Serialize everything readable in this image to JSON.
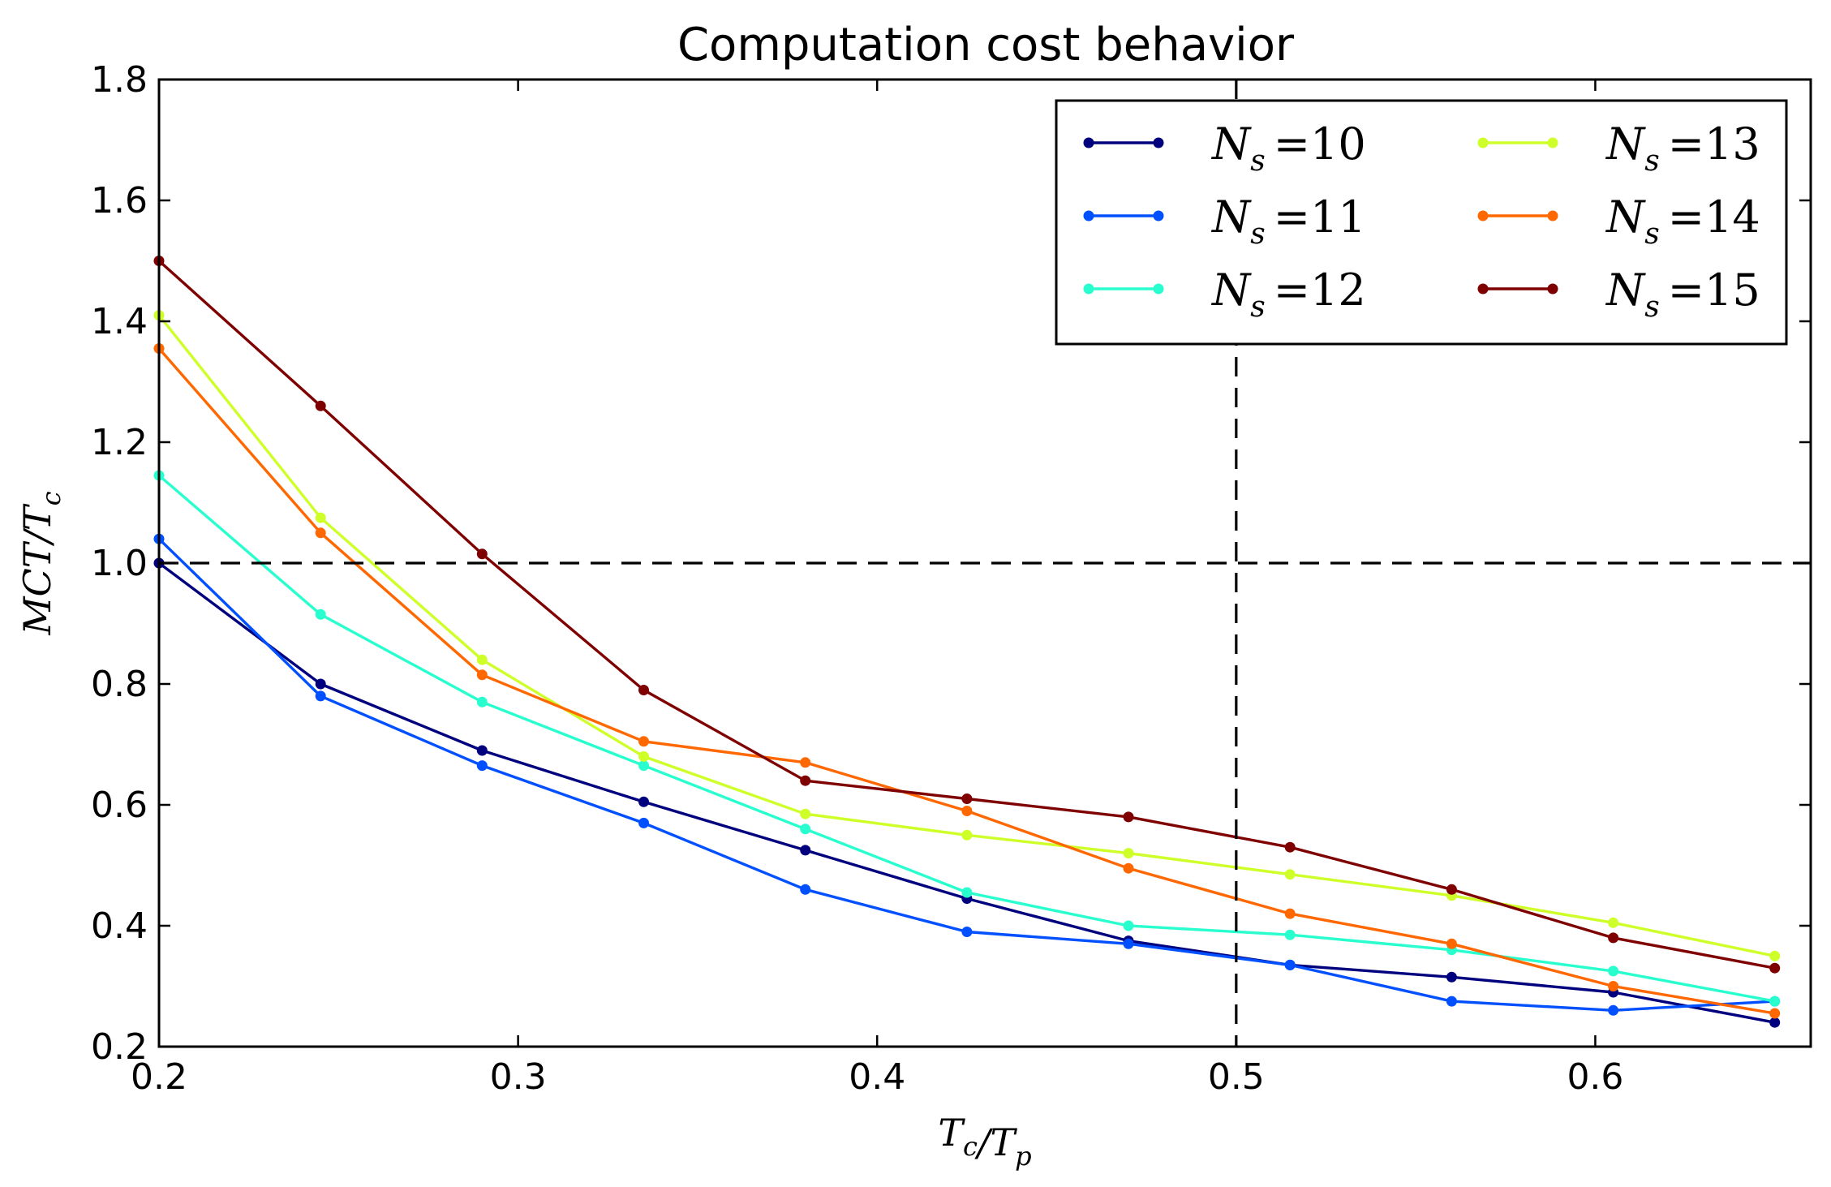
{
  "chart_data": {
    "type": "line",
    "title": "Computation cost behavior",
    "xlabel": "Tc/Tp",
    "ylabel": "MCT/Tc",
    "xlim": [
      0.2,
      0.66
    ],
    "ylim": [
      0.2,
      1.8
    ],
    "xticks": [
      "0.2",
      "0.3",
      "0.4",
      "0.5",
      "0.6"
    ],
    "yticks": [
      "0.2",
      "0.4",
      "0.6",
      "0.8",
      "1.0",
      "1.2",
      "1.4",
      "1.6",
      "1.8"
    ],
    "grid": false,
    "legend_position": "top-right",
    "legend_columns": 2,
    "reference_lines": [
      {
        "orientation": "horizontal",
        "value": 1.0,
        "style": "dashed",
        "color": "#000000"
      },
      {
        "orientation": "vertical",
        "value": 0.5,
        "style": "dashed",
        "color": "#000000"
      }
    ],
    "x": [
      0.2,
      0.245,
      0.29,
      0.335,
      0.38,
      0.425,
      0.47,
      0.515,
      0.56,
      0.605,
      0.65
    ],
    "series": [
      {
        "name": "Ns =10",
        "color": "#00007f",
        "values": [
          1.0,
          0.8,
          0.69,
          0.605,
          0.525,
          0.445,
          0.375,
          0.335,
          0.315,
          0.29,
          0.24
        ]
      },
      {
        "name": "Ns =11",
        "color": "#0050ff",
        "values": [
          1.04,
          0.78,
          0.665,
          0.57,
          0.46,
          0.39,
          0.37,
          0.335,
          0.275,
          0.26,
          0.275
        ]
      },
      {
        "name": "Ns =12",
        "color": "#29ffce",
        "values": [
          1.145,
          0.915,
          0.77,
          0.665,
          0.56,
          0.455,
          0.4,
          0.385,
          0.36,
          0.325,
          0.275
        ]
      },
      {
        "name": "Ns =13",
        "color": "#ceff29",
        "values": [
          1.41,
          1.075,
          0.84,
          0.68,
          0.585,
          0.55,
          0.52,
          0.485,
          0.45,
          0.405,
          0.35
        ]
      },
      {
        "name": "Ns =14",
        "color": "#ff6800",
        "values": [
          1.355,
          1.05,
          0.815,
          0.705,
          0.67,
          0.59,
          0.495,
          0.42,
          0.37,
          0.3,
          0.255
        ]
      },
      {
        "name": "Ns =15",
        "color": "#7f0000",
        "values": [
          1.5,
          1.26,
          1.015,
          0.79,
          0.64,
          0.61,
          0.58,
          0.53,
          0.46,
          0.38,
          0.33
        ]
      }
    ]
  }
}
